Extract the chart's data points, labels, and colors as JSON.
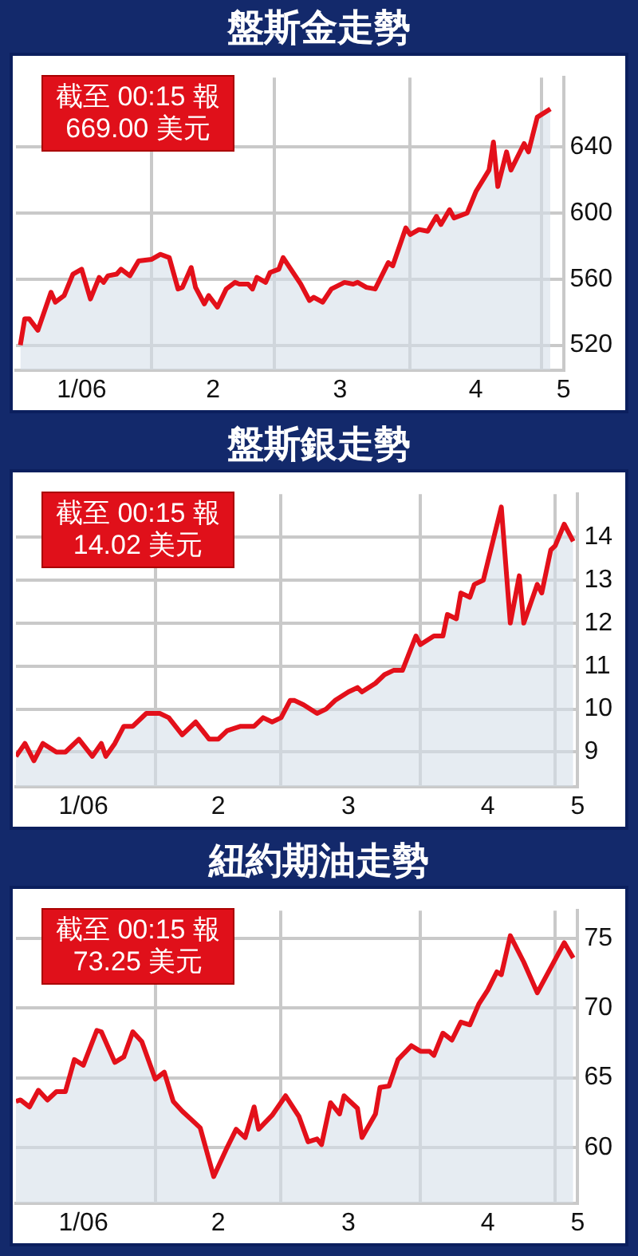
{
  "chart_data": [
    {
      "type": "area",
      "title": "盤斯金走勢",
      "annotations": [
        "截至 00:15 報",
        "669.00 美元"
      ],
      "x": [
        "2006-01-02",
        "2006-01-03",
        "2006-01-04",
        "2006-01-06",
        "2006-01-09",
        "2006-01-10",
        "2006-01-12",
        "2006-01-14",
        "2006-01-16",
        "2006-01-18",
        "2006-01-20",
        "2006-01-21",
        "2006-01-22",
        "2006-01-24",
        "2006-01-25",
        "2006-01-27",
        "2006-01-29",
        "2006-02-01",
        "2006-02-03",
        "2006-02-05",
        "2006-02-07",
        "2006-02-08",
        "2006-02-10",
        "2006-02-11",
        "2006-02-13",
        "2006-02-14",
        "2006-02-16",
        "2006-02-18",
        "2006-02-20",
        "2006-02-21",
        "2006-02-23",
        "2006-02-24",
        "2006-02-25",
        "2006-02-27",
        "2006-02-28",
        "2006-03-02",
        "2006-03-03",
        "2006-03-05",
        "2006-03-07",
        "2006-03-09",
        "2006-03-10",
        "2006-03-12",
        "2006-03-14",
        "2006-03-17",
        "2006-03-19",
        "2006-03-20",
        "2006-03-22",
        "2006-03-24",
        "2006-03-27",
        "2006-03-28",
        "2006-03-31",
        "2006-04-01",
        "2006-04-03",
        "2006-04-05",
        "2006-04-07",
        "2006-04-08",
        "2006-04-10",
        "2006-04-11",
        "2006-04-14",
        "2006-04-16",
        "2006-04-19",
        "2006-04-20",
        "2006-04-21",
        "2006-04-23",
        "2006-04-24",
        "2006-04-27",
        "2006-04-28",
        "2006-04-30",
        "2006-05-03"
      ],
      "series": [
        {
          "color": "#e3101a",
          "values": [
            520,
            536,
            536,
            529,
            552,
            546,
            550,
            563,
            566,
            548,
            561,
            558,
            562,
            563,
            566,
            562,
            571,
            572,
            575,
            573,
            554,
            555,
            567,
            555,
            545,
            550,
            543,
            554,
            558,
            557,
            557,
            554,
            561,
            558,
            564,
            566,
            573,
            565,
            557,
            547,
            549,
            546,
            554,
            558,
            557,
            558,
            555,
            554,
            570,
            568,
            591,
            587,
            590,
            589,
            598,
            593,
            602,
            597,
            600,
            613,
            626,
            643,
            616,
            637,
            626,
            642,
            637,
            658,
            663
          ]
        }
      ],
      "xlim": [
        "2006-01-01",
        "2006-05-06"
      ],
      "xticks": [
        {
          "value": "2006-01-16",
          "label": "1/06"
        },
        {
          "value": "2006-02-01",
          "label": null
        },
        {
          "value": "2006-02-15",
          "label": "2"
        },
        {
          "value": "2006-03-01",
          "label": null
        },
        {
          "value": "2006-03-16",
          "label": "3"
        },
        {
          "value": "2006-04-01",
          "label": null
        },
        {
          "value": "2006-04-16",
          "label": "4"
        },
        {
          "value": "2006-05-01",
          "label": null
        },
        {
          "value": "2006-05-06",
          "label": "5"
        }
      ],
      "ylim": [
        505,
        682
      ],
      "yticks": [
        520,
        560,
        600,
        640
      ],
      "grid": true,
      "legend": false,
      "marker": "none"
    },
    {
      "type": "area",
      "title": "盤斯銀走勢",
      "annotations": [
        "截至 00:15 報",
        "14.02 美元"
      ],
      "x": [
        "2006-01-01",
        "2006-01-03",
        "2006-01-05",
        "2006-01-07",
        "2006-01-10",
        "2006-01-12",
        "2006-01-15",
        "2006-01-18",
        "2006-01-20",
        "2006-01-21",
        "2006-01-23",
        "2006-01-25",
        "2006-01-27",
        "2006-01-30",
        "2006-01-31",
        "2006-02-02",
        "2006-02-04",
        "2006-02-07",
        "2006-02-10",
        "2006-02-13",
        "2006-02-15",
        "2006-02-17",
        "2006-02-20",
        "2006-02-23",
        "2006-02-25",
        "2006-02-27",
        "2006-03-01",
        "2006-03-03",
        "2006-03-04",
        "2006-03-06",
        "2006-03-09",
        "2006-03-11",
        "2006-03-13",
        "2006-03-16",
        "2006-03-18",
        "2006-03-19",
        "2006-03-22",
        "2006-03-24",
        "2006-03-26",
        "2006-03-28",
        "2006-03-31",
        "2006-04-01",
        "2006-04-04",
        "2006-04-06",
        "2006-04-07",
        "2006-04-09",
        "2006-04-10",
        "2006-04-12",
        "2006-04-13",
        "2006-04-15",
        "2006-04-19",
        "2006-04-21",
        "2006-04-23",
        "2006-04-24",
        "2006-04-27",
        "2006-04-28",
        "2006-04-30",
        "2006-05-01",
        "2006-05-03",
        "2006-05-05"
      ],
      "series": [
        {
          "color": "#e3101a",
          "values": [
            8.9,
            9.2,
            8.8,
            9.2,
            9.0,
            9.0,
            9.3,
            8.9,
            9.2,
            8.9,
            9.2,
            9.6,
            9.6,
            9.9,
            9.9,
            9.9,
            9.8,
            9.4,
            9.7,
            9.3,
            9.3,
            9.5,
            9.6,
            9.6,
            9.8,
            9.7,
            9.8,
            10.2,
            10.2,
            10.1,
            9.9,
            10.0,
            10.2,
            10.4,
            10.5,
            10.4,
            10.6,
            10.8,
            10.9,
            10.9,
            11.7,
            11.5,
            11.7,
            11.7,
            12.2,
            12.1,
            12.7,
            12.6,
            12.9,
            13.0,
            14.7,
            12.0,
            13.1,
            12.0,
            12.9,
            12.7,
            13.7,
            13.8,
            14.3,
            13.9
          ]
        }
      ],
      "xlim": [
        "2006-01-01",
        "2006-05-06"
      ],
      "xticks": [
        {
          "value": "2006-01-16",
          "label": "1/06"
        },
        {
          "value": "2006-02-01",
          "label": null
        },
        {
          "value": "2006-02-15",
          "label": "2"
        },
        {
          "value": "2006-03-01",
          "label": null
        },
        {
          "value": "2006-03-16",
          "label": "3"
        },
        {
          "value": "2006-04-01",
          "label": null
        },
        {
          "value": "2006-04-16",
          "label": "4"
        },
        {
          "value": "2006-05-01",
          "label": null
        },
        {
          "value": "2006-05-06",
          "label": "5"
        }
      ],
      "ylim": [
        8.2,
        15
      ],
      "yticks": [
        9,
        10,
        11,
        12,
        13,
        14
      ],
      "grid": true,
      "legend": false,
      "marker": "none"
    },
    {
      "type": "area",
      "title": "紐約期油走勢",
      "annotations": [
        "截至 00:15 報",
        "73.25 美元"
      ],
      "x": [
        "2006-01-01",
        "2006-01-02",
        "2006-01-04",
        "2006-01-06",
        "2006-01-08",
        "2006-01-10",
        "2006-01-12",
        "2006-01-14",
        "2006-01-16",
        "2006-01-19",
        "2006-01-20",
        "2006-01-23",
        "2006-01-25",
        "2006-01-27",
        "2006-01-29",
        "2006-02-01",
        "2006-02-03",
        "2006-02-05",
        "2006-02-07",
        "2006-02-09",
        "2006-02-11",
        "2006-02-14",
        "2006-02-17",
        "2006-02-19",
        "2006-02-21",
        "2006-02-23",
        "2006-02-24",
        "2006-02-27",
        "2006-03-02",
        "2006-03-05",
        "2006-03-07",
        "2006-03-09",
        "2006-03-10",
        "2006-03-12",
        "2006-03-14",
        "2006-03-15",
        "2006-03-18",
        "2006-03-19",
        "2006-03-22",
        "2006-03-23",
        "2006-03-25",
        "2006-03-27",
        "2006-03-30",
        "2006-04-01",
        "2006-04-03",
        "2006-04-04",
        "2006-04-06",
        "2006-04-08",
        "2006-04-10",
        "2006-04-12",
        "2006-04-14",
        "2006-04-16",
        "2006-04-18",
        "2006-04-19",
        "2006-04-21",
        "2006-04-24",
        "2006-04-27",
        "2006-05-03",
        "2006-05-05"
      ],
      "series": [
        {
          "color": "#e3101a",
          "values": [
            63.3,
            63.4,
            62.9,
            64.1,
            63.4,
            64.0,
            64.0,
            66.3,
            65.9,
            68.4,
            68.3,
            66.1,
            66.5,
            68.3,
            67.6,
            64.9,
            65.4,
            63.3,
            62.6,
            62.0,
            61.4,
            57.9,
            60.0,
            61.3,
            60.7,
            62.9,
            61.3,
            62.3,
            63.7,
            62.2,
            60.4,
            60.6,
            60.2,
            63.2,
            62.4,
            63.7,
            62.8,
            60.7,
            62.4,
            64.3,
            64.4,
            66.3,
            67.3,
            66.9,
            66.9,
            66.6,
            68.2,
            67.7,
            69.0,
            68.8,
            70.3,
            71.3,
            72.6,
            72.4,
            75.2,
            73.3,
            71.1,
            74.7,
            73.6
          ]
        }
      ],
      "xlim": [
        "2006-01-01",
        "2006-05-06"
      ],
      "xticks": [
        {
          "value": "2006-01-16",
          "label": "1/06"
        },
        {
          "value": "2006-02-01",
          "label": null
        },
        {
          "value": "2006-02-15",
          "label": "2"
        },
        {
          "value": "2006-03-01",
          "label": null
        },
        {
          "value": "2006-03-16",
          "label": "3"
        },
        {
          "value": "2006-04-01",
          "label": null
        },
        {
          "value": "2006-04-16",
          "label": "4"
        },
        {
          "value": "2006-05-01",
          "label": null
        },
        {
          "value": "2006-05-06",
          "label": "5"
        }
      ],
      "ylim": [
        56,
        77
      ],
      "yticks": [
        60,
        65,
        70,
        75
      ],
      "grid": true,
      "legend": false,
      "marker": "none"
    }
  ]
}
